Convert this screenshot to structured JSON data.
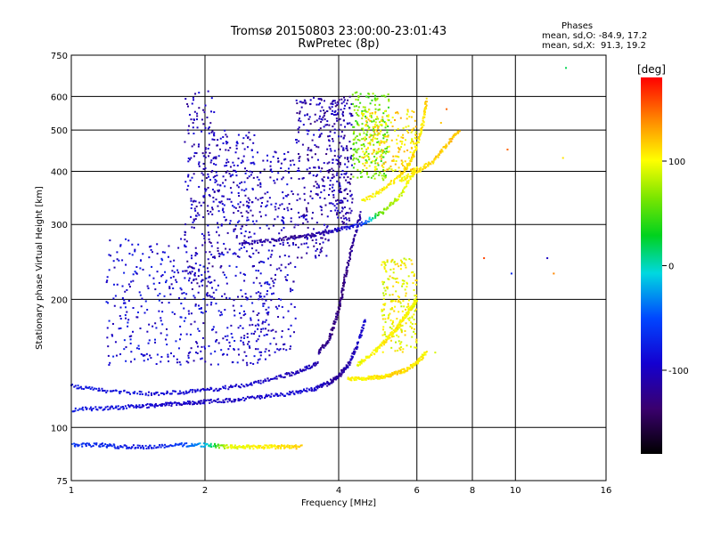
{
  "header": {
    "title_line1": "Tromsø 20150803 23:00:00-23:01:43",
    "title_line2": "RwPretec (8p)"
  },
  "phase_info": {
    "heading": "Phases",
    "line_o": "mean, sd,O: -84.9, 17.2",
    "line_x": "mean, sd,X:  91.3, 19.2"
  },
  "colorbar": {
    "unit": "[deg]",
    "ticks": [
      {
        "label": "100",
        "value": 100
      },
      {
        "label": "0",
        "value": 0
      },
      {
        "label": "-100",
        "value": -100
      }
    ],
    "range": [
      -180,
      180
    ]
  },
  "chart_data": {
    "type": "scatter",
    "title": "Tromsø 20150803 23:00:00-23:01:43",
    "subtitle": "RwPretec (8p)",
    "xlabel": "Frequency [MHz]",
    "ylabel": "Stationary phase Virtual Height [km]",
    "xscale": "log",
    "yscale": "log",
    "xlim": [
      1,
      16
    ],
    "ylim": [
      75,
      750
    ],
    "grid": true,
    "x_ticks": [
      1,
      2,
      4,
      6,
      8,
      10,
      16
    ],
    "x_tick_labels": [
      "1",
      "2",
      "4",
      "6",
      "8",
      "10",
      "16"
    ],
    "x_gridlines": [
      2,
      4,
      6,
      8,
      10
    ],
    "y_ticks": [
      75,
      100,
      200,
      300,
      400,
      500,
      600,
      750
    ],
    "y_tick_labels": [
      "75",
      "100",
      "200",
      "300",
      "400",
      "500",
      "600",
      "750"
    ],
    "y_gridlines": [
      100,
      200,
      300,
      400,
      500,
      600
    ],
    "colorbar_label": "[deg]",
    "colorbar_range": [
      -180,
      180
    ],
    "traces": [
      {
        "x": [
          1.0,
          1.15,
          1.3,
          1.5,
          1.75,
          2.0,
          2.25,
          2.5,
          2.75,
          3.0,
          3.3
        ],
        "y": [
          91,
          91,
          90,
          90,
          91,
          91,
          90,
          90,
          90,
          90,
          90
        ],
        "phase": [
          -60,
          -70,
          -75,
          -80,
          -60,
          -20,
          95,
          100,
          105,
          110,
          115
        ]
      },
      {
        "x": [
          1.0,
          1.2,
          1.4,
          1.6,
          1.8,
          2.0,
          2.3,
          2.7,
          3.1,
          3.5,
          3.8,
          4.0,
          4.2,
          4.4,
          4.6
        ],
        "y": [
          110,
          111,
          112,
          113,
          114,
          115,
          116,
          118,
          120,
          123,
          127,
          132,
          140,
          155,
          180
        ],
        "phase": [
          -80,
          -85,
          -90,
          -95,
          -100,
          -100,
          -100,
          -95,
          -90,
          -95,
          -110,
          -120,
          -110,
          -100,
          -90
        ]
      },
      {
        "x": [
          1.0,
          1.2,
          1.5,
          1.8,
          2.1,
          2.5,
          2.9,
          3.3,
          3.6
        ],
        "y": [
          125,
          122,
          120,
          121,
          123,
          126,
          131,
          136,
          142
        ],
        "phase": [
          -80,
          -85,
          -90,
          -90,
          -95,
          -95,
          -100,
          -105,
          -110
        ]
      },
      {
        "x": [
          3.6,
          3.8,
          3.95,
          4.05,
          4.15,
          4.3,
          4.5
        ],
        "y": [
          150,
          160,
          180,
          200,
          230,
          270,
          320
        ],
        "phase": [
          -120,
          -125,
          -130,
          -130,
          -125,
          -120,
          -115
        ]
      },
      {
        "x": [
          4.2,
          4.5,
          4.8,
          5.1,
          5.4,
          5.7,
          6.0,
          6.3
        ],
        "y": [
          130,
          130,
          131,
          132,
          134,
          137,
          142,
          150
        ],
        "phase": [
          100,
          105,
          110,
          110,
          115,
          110,
          105,
          100
        ]
      },
      {
        "x": [
          4.4,
          4.8,
          5.1,
          5.4,
          5.6,
          5.8,
          6.0
        ],
        "y": [
          140,
          150,
          160,
          170,
          180,
          190,
          200
        ],
        "phase": [
          95,
          100,
          105,
          110,
          105,
          100,
          95
        ]
      },
      {
        "x": [
          2.4,
          2.8,
          3.2,
          3.6,
          4.0,
          4.5,
          5.0,
          5.5,
          6.0
        ],
        "y": [
          270,
          275,
          280,
          285,
          292,
          300,
          320,
          350,
          410
        ],
        "phase": [
          -110,
          -115,
          -120,
          -110,
          -100,
          -70,
          60,
          90,
          110
        ]
      },
      {
        "x": [
          4.5,
          5.0,
          5.5,
          5.8,
          6.0,
          6.2,
          6.3
        ],
        "y": [
          340,
          360,
          390,
          420,
          460,
          520,
          590
        ],
        "phase": [
          100,
          105,
          110,
          115,
          110,
          105,
          120
        ]
      },
      {
        "x": [
          5.5,
          6.0,
          6.5,
          7.0,
          7.5
        ],
        "y": [
          380,
          400,
          420,
          460,
          500
        ],
        "phase": [
          100,
          110,
          115,
          120,
          120
        ]
      }
    ],
    "clusters": [
      {
        "x_range": [
          1.8,
          2.1
        ],
        "y_range": [
          200,
          620
        ],
        "phase": -105
      },
      {
        "x_range": [
          2.1,
          2.6
        ],
        "y_range": [
          250,
          500
        ],
        "phase": -100
      },
      {
        "x_range": [
          2.6,
          3.2
        ],
        "y_range": [
          150,
          450
        ],
        "phase": -100
      },
      {
        "x_range": [
          3.2,
          3.8
        ],
        "y_range": [
          250,
          600
        ],
        "phase": -110
      },
      {
        "x_range": [
          3.8,
          4.3
        ],
        "y_range": [
          300,
          600
        ],
        "phase": -110
      },
      {
        "x_range": [
          1.8,
          2.8
        ],
        "y_range": [
          140,
          240
        ],
        "phase": -95
      },
      {
        "x_range": [
          1.2,
          1.8
        ],
        "y_range": [
          140,
          280
        ],
        "phase": -90
      },
      {
        "x_range": [
          4.3,
          5.2
        ],
        "y_range": [
          380,
          620
        ],
        "phase": 60
      },
      {
        "x_range": [
          5.0,
          6.0
        ],
        "y_range": [
          150,
          250
        ],
        "phase": 100
      },
      {
        "x_range": [
          4.5,
          6.0
        ],
        "y_range": [
          400,
          560
        ],
        "phase": 110
      }
    ],
    "isolated_points": [
      {
        "x": 9.6,
        "y": 450,
        "phase": 150
      },
      {
        "x": 8.5,
        "y": 250,
        "phase": 160
      },
      {
        "x": 9.8,
        "y": 230,
        "phase": -70
      },
      {
        "x": 12.2,
        "y": 230,
        "phase": 140
      },
      {
        "x": 13.0,
        "y": 700,
        "phase": 20
      },
      {
        "x": 12.8,
        "y": 430,
        "phase": 110
      },
      {
        "x": 11.8,
        "y": 250,
        "phase": -100
      },
      {
        "x": 6.8,
        "y": 520,
        "phase": 120
      },
      {
        "x": 7.0,
        "y": 560,
        "phase": 150
      },
      {
        "x": 6.6,
        "y": 150,
        "phase": 90
      }
    ]
  }
}
